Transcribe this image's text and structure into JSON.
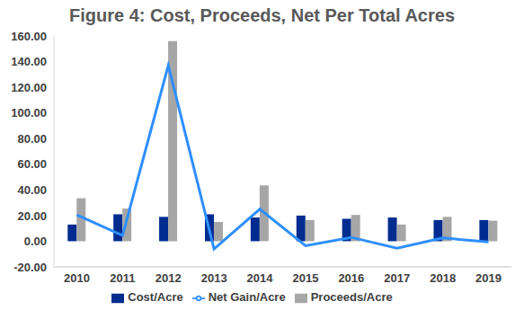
{
  "chart_data": {
    "type": "bar",
    "title": "Figure 4:  Cost, Proceeds, Net Per Total Acres",
    "categories": [
      "2010",
      "2011",
      "2012",
      "2013",
      "2014",
      "2015",
      "2016",
      "2017",
      "2018",
      "2019"
    ],
    "series": [
      {
        "name": "Cost/Acre",
        "type": "bar",
        "color": "#002C8F",
        "values": [
          13,
          21,
          19,
          21,
          18.5,
          20,
          17.5,
          18.5,
          16.5,
          16.5
        ]
      },
      {
        "name": "Proceeds/Acre",
        "type": "bar",
        "color": "#A6A6A6",
        "values": [
          33.5,
          25.5,
          156,
          15,
          43.5,
          16.5,
          20.5,
          13,
          19,
          16
        ]
      },
      {
        "name": "Net Gain/Acre",
        "type": "line",
        "color": "#2E8FFF",
        "marker": "none",
        "values": [
          20.5,
          4.5,
          137,
          -6,
          25,
          -3.5,
          3,
          -5.5,
          2.5,
          -0.5
        ]
      }
    ],
    "ylim": [
      -20,
      160
    ],
    "yticks": [
      {
        "value": -20,
        "label": "-20.00"
      },
      {
        "value": 0,
        "label": "0.00"
      },
      {
        "value": 20,
        "label": "20.00"
      },
      {
        "value": 40,
        "label": "40.00"
      },
      {
        "value": 60,
        "label": "60.00"
      },
      {
        "value": 80,
        "label": "80.00"
      },
      {
        "value": 100,
        "label": "100.00"
      },
      {
        "value": 120,
        "label": "120.00"
      },
      {
        "value": 140,
        "label": "140.00"
      },
      {
        "value": 160,
        "label": "160.00"
      }
    ],
    "grid": false,
    "legend": "bottom"
  }
}
